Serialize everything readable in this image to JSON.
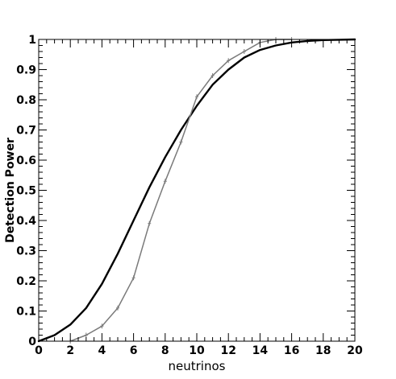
{
  "chart_data": {
    "type": "line",
    "title": "",
    "xlabel": "neutrinos",
    "ylabel": "Detection Power",
    "xlim": [
      0,
      20
    ],
    "ylim": [
      0,
      1
    ],
    "x_ticks": [
      0,
      2,
      4,
      6,
      8,
      10,
      12,
      14,
      16,
      18,
      20
    ],
    "y_ticks": [
      0,
      0.1,
      0.2,
      0.3,
      0.4,
      0.5,
      0.6,
      0.7,
      0.8,
      0.9,
      1
    ],
    "grid": false,
    "series": [
      {
        "color": "#000000",
        "style": "solid-thick",
        "x": [
          0,
          1,
          2,
          3,
          4,
          5,
          6,
          7,
          8,
          9,
          10,
          11,
          12,
          13,
          14,
          15,
          16,
          17,
          18,
          19,
          20
        ],
        "y": [
          0.0,
          0.02,
          0.055,
          0.11,
          0.19,
          0.29,
          0.4,
          0.51,
          0.61,
          0.7,
          0.78,
          0.85,
          0.9,
          0.94,
          0.965,
          0.98,
          0.99,
          0.995,
          0.998,
          0.999,
          1.0
        ]
      },
      {
        "color": "#7a7a7a",
        "style": "solid-thin-markers",
        "x": [
          2,
          3,
          4,
          5,
          6,
          7,
          8,
          9,
          10,
          11,
          12,
          13,
          14,
          15,
          16
        ],
        "y": [
          0.0,
          0.02,
          0.05,
          0.11,
          0.21,
          0.39,
          0.53,
          0.66,
          0.81,
          0.88,
          0.93,
          0.96,
          0.99,
          1.0,
          1.0
        ]
      }
    ]
  }
}
